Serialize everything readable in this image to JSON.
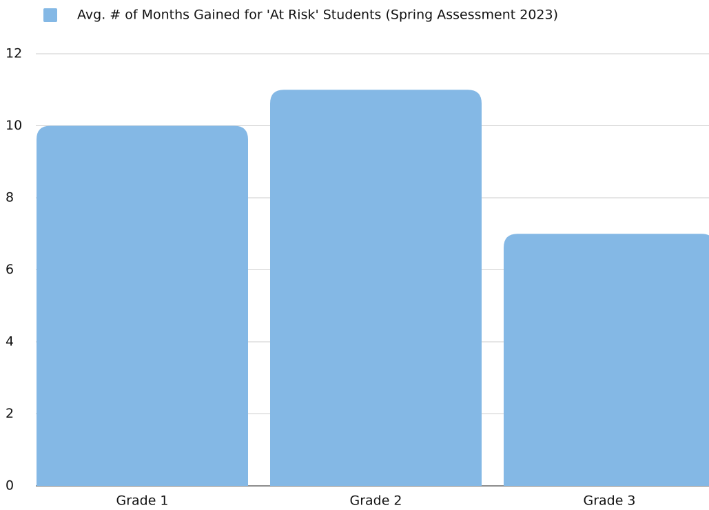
{
  "chart_data": {
    "type": "bar",
    "categories": [
      "Grade 1",
      "Grade 2",
      "Grade 3"
    ],
    "series": [
      {
        "name": "Avg. # of Months Gained for 'At Risk' Students (Spring Assessment 2023)",
        "color": "#84b8e5",
        "values": [
          10,
          11,
          7
        ]
      }
    ],
    "ylim": [
      0,
      12
    ],
    "yticks": [
      0,
      2,
      4,
      6,
      8,
      10,
      12
    ],
    "grid": true,
    "legend": "top"
  }
}
